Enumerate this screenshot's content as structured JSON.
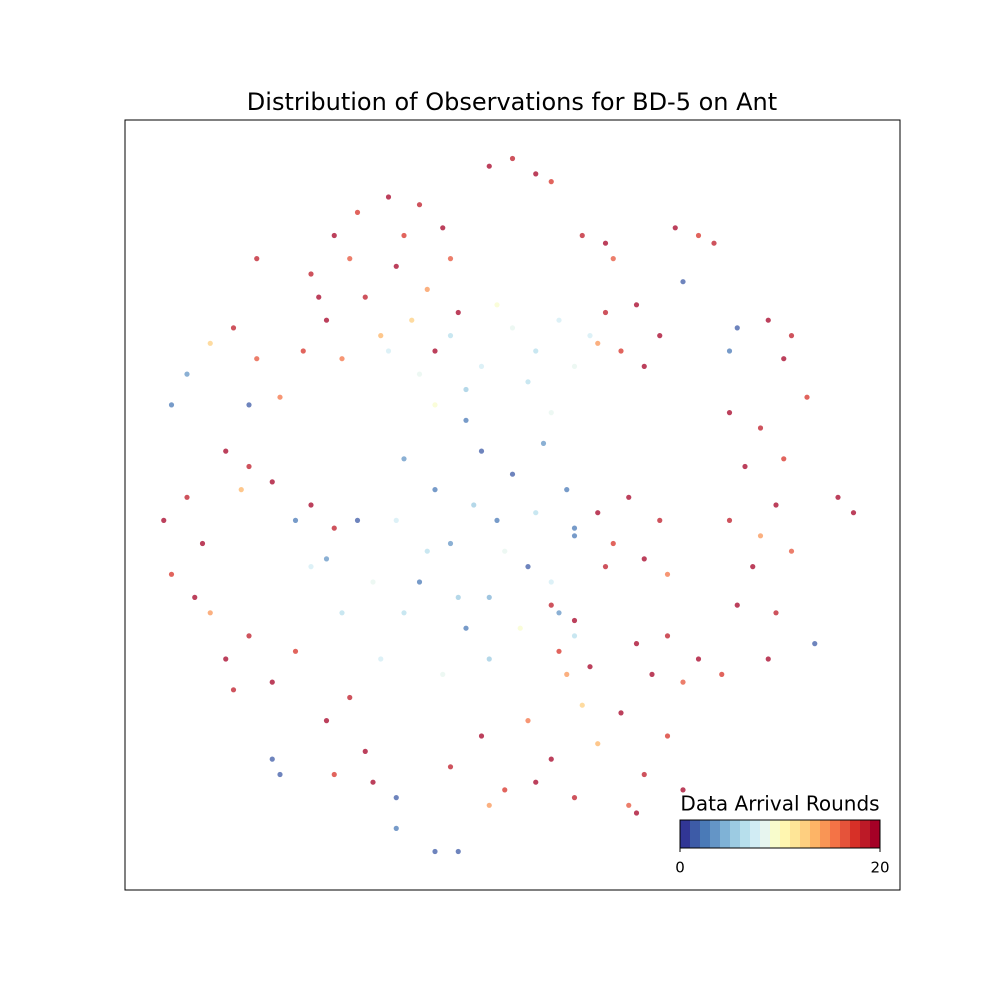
{
  "chart_data": {
    "type": "scatter",
    "title": "Distribution of Observations for BD-5 on Ant",
    "xlim": [
      0,
      100
    ],
    "ylim": [
      0,
      100
    ],
    "x": [
      24,
      27,
      30,
      34,
      38,
      41,
      42,
      39,
      35,
      31,
      26,
      23,
      28,
      33,
      37,
      40,
      43,
      29,
      36,
      25,
      34,
      38,
      42,
      46,
      50,
      53,
      56,
      58,
      48,
      44,
      60,
      52,
      40,
      55,
      44,
      46,
      36,
      40,
      50,
      54,
      57,
      48,
      42,
      38,
      52,
      56,
      44,
      30,
      26,
      58,
      47,
      35,
      39,
      45,
      49,
      53,
      55,
      43,
      36,
      32,
      24,
      28,
      47,
      51,
      58,
      41,
      33,
      47,
      50,
      53,
      55,
      59,
      62,
      63,
      71,
      74,
      76,
      62,
      66,
      69,
      64,
      67,
      61,
      83,
      86,
      85,
      78,
      82,
      85,
      80,
      84,
      78,
      86,
      81,
      79,
      84,
      82,
      61,
      65,
      69,
      63,
      67,
      70,
      62,
      66,
      70,
      74,
      77,
      68,
      72,
      55,
      58,
      56,
      60,
      57,
      42,
      46,
      49,
      52,
      55,
      58,
      61,
      64,
      67,
      70,
      72,
      47,
      59,
      53,
      65,
      26,
      29,
      31,
      27,
      32,
      13,
      16,
      19,
      22,
      14,
      5,
      8,
      10,
      6,
      9,
      11,
      13,
      16,
      19,
      15,
      24,
      27,
      8,
      11,
      14,
      17,
      20,
      6,
      92,
      94,
      19,
      20,
      40,
      43,
      35,
      35,
      72,
      79,
      78,
      89,
      16,
      22,
      58,
      17,
      66,
      83,
      88
    ],
    "y": [
      80,
      85,
      88,
      90,
      89,
      86,
      82,
      78,
      81,
      77,
      74,
      70,
      69,
      72,
      74,
      70,
      75,
      82,
      85,
      77,
      70,
      67,
      72,
      68,
      73,
      70,
      74,
      68,
      76,
      65,
      72,
      66,
      63,
      62,
      61,
      57,
      56,
      52,
      54,
      58,
      52,
      48,
      45,
      40,
      42,
      36,
      34,
      48,
      43,
      46,
      38,
      48,
      44,
      50,
      44,
      49,
      40,
      38,
      36,
      40,
      42,
      36,
      30,
      34,
      33,
      28,
      30,
      94,
      95,
      93,
      92,
      85,
      84,
      82,
      86,
      85,
      84,
      75,
      76,
      72,
      70,
      68,
      71,
      74,
      72,
      69,
      62,
      60,
      56,
      55,
      50,
      48,
      44,
      42,
      37,
      36,
      46,
      49,
      51,
      48,
      45,
      43,
      41,
      42,
      32,
      33,
      30,
      28,
      28,
      27,
      37,
      35,
      31,
      29,
      28,
      16,
      20,
      13,
      22,
      17,
      12,
      19,
      23,
      15,
      20,
      13,
      11,
      24,
      14,
      11,
      22,
      25,
      18,
      15,
      14,
      30,
      33,
      27,
      31,
      26,
      48,
      51,
      45,
      41,
      38,
      36,
      57,
      55,
      53,
      52,
      50,
      47,
      67,
      71,
      73,
      69,
      64,
      63,
      51,
      49,
      17,
      15,
      5,
      5,
      12,
      8,
      79,
      73,
      70,
      32,
      63,
      48,
      47,
      82,
      10,
      30,
      64
    ],
    "values": [
      18,
      19,
      17,
      20,
      18,
      19,
      16,
      14,
      19,
      18,
      20,
      17,
      15,
      13,
      12,
      19,
      20,
      16,
      17,
      19,
      7,
      8,
      6,
      7,
      8,
      6,
      7,
      8,
      9,
      5,
      7,
      6,
      9,
      8,
      2,
      1,
      3,
      2,
      1,
      3,
      2,
      2,
      3,
      2,
      1,
      3,
      2,
      1,
      3,
      2,
      4,
      7,
      6,
      5,
      8,
      6,
      7,
      5,
      6,
      8,
      7,
      6,
      5,
      9,
      6,
      8,
      7,
      19,
      18,
      20,
      17,
      18,
      19,
      16,
      19,
      17,
      18,
      18,
      19,
      20,
      17,
      19,
      14,
      19,
      18,
      20,
      19,
      18,
      17,
      20,
      19,
      18,
      16,
      20,
      19,
      18,
      14,
      19,
      20,
      18,
      17,
      19,
      15,
      18,
      19,
      18,
      20,
      17,
      19,
      16,
      18,
      19,
      17,
      20,
      14,
      18,
      19,
      17,
      15,
      20,
      18,
      13,
      19,
      18,
      17,
      20,
      14,
      12,
      19,
      16,
      19,
      18,
      20,
      17,
      19,
      19,
      18,
      20,
      17,
      18,
      19,
      18,
      20,
      17,
      19,
      14,
      19,
      18,
      20,
      13,
      19,
      18,
      3,
      12,
      18,
      16,
      15,
      2,
      19,
      20,
      1,
      1,
      1,
      1,
      1,
      2,
      1,
      1,
      2,
      1,
      1,
      2,
      2,
      18,
      19,
      20,
      17
    ],
    "colorbar_label": "Data Arrival Rounds",
    "clim": [
      0,
      20
    ],
    "cticks": [
      0,
      20
    ],
    "colormap": [
      "#313695",
      "#3d5ba7",
      "#4a7ab7",
      "#6495c6",
      "#7fb2d6",
      "#9ccbe2",
      "#b7dfec",
      "#d1ecf4",
      "#e7f5ef",
      "#f8fccc",
      "#fff6b0",
      "#fee597",
      "#fecf80",
      "#fdb466",
      "#f99555",
      "#f47346",
      "#e5533a",
      "#d73027",
      "#bd1a27",
      "#a50026"
    ]
  }
}
